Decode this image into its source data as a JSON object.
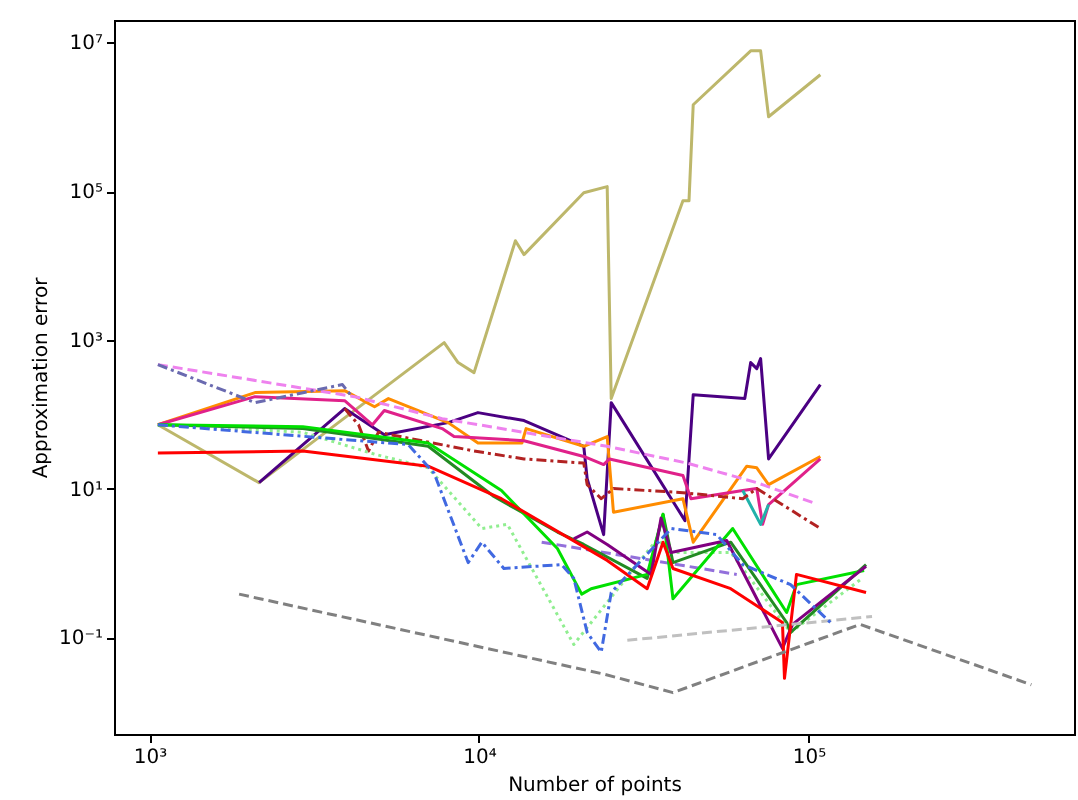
{
  "chart_data": {
    "type": "line",
    "xlabel": "Number of points",
    "ylabel": "Approximation error",
    "log": "xy",
    "grid": false,
    "marker": "none",
    "xlim": [
      780,
      640000
    ],
    "ylim": [
      0.005,
      20000000
    ],
    "xticks": [
      {
        "value": 1000,
        "label": "10³"
      },
      {
        "value": 10000,
        "label": "10⁴"
      },
      {
        "value": 100000,
        "label": "10⁵"
      }
    ],
    "yticks": [
      {
        "value": 0.1,
        "label": "10⁻¹"
      },
      {
        "value": 10,
        "label": "10¹"
      },
      {
        "value": 1000,
        "label": "10³"
      },
      {
        "value": 100000,
        "label": "10⁵"
      },
      {
        "value": 10000000,
        "label": "10⁷"
      }
    ],
    "series": [
      {
        "color": "#bdb76b",
        "line_style": "solid",
        "x": [
          1060,
          2150,
          7840,
          8640,
          9660,
          12900,
          13700,
          20800,
          24500,
          25200,
          41600,
          43400,
          44700,
          66800,
          71600,
          75700,
          108700
        ],
        "values": [
          72,
          12,
          916,
          494,
          362,
          21500,
          14000,
          95000,
          115000,
          162,
          74000,
          74000,
          1450000,
          7700000,
          7700000,
          1000000,
          3670000
        ]
      },
      {
        "color": "#4b0082",
        "line_style": "solid",
        "x": [
          2150,
          3910,
          5160,
          8060,
          9930,
          13700,
          20800,
          21300,
          23900,
          25200,
          42200,
          44700,
          64100,
          66800,
          69700,
          71600,
          75700,
          108700
        ],
        "values": [
          12,
          119,
          53,
          77,
          105,
          82,
          37,
          13.6,
          2.4,
          143,
          3.7,
          183,
          162,
          494,
          410,
          559,
          25,
          250
        ]
      },
      {
        "color": "#ff8c00",
        "line_style": "solid",
        "x": [
          1060,
          2090,
          3910,
          4820,
          5310,
          8060,
          9930,
          13500,
          13900,
          20800,
          24500,
          25600,
          41600,
          44700,
          65000,
          69700,
          75700,
          108700
        ],
        "values": [
          72,
          195,
          207,
          126,
          162,
          77,
          41,
          41,
          64,
          37,
          50,
          4.8,
          7.3,
          1.9,
          20,
          19,
          11.3,
          27
        ]
      },
      {
        "color": "#e0218a",
        "line_style": "solid",
        "x": [
          1060,
          2090,
          3910,
          4750,
          5160,
          7730,
          8400,
          13700,
          20800,
          23900,
          24900,
          41600,
          44000,
          63200,
          69700,
          72600,
          75700,
          108700
        ],
        "values": [
          72,
          172,
          152,
          72,
          112,
          64,
          50,
          44,
          27,
          21,
          25,
          15,
          7.3,
          9.4,
          10,
          3.3,
          6.1,
          25
        ]
      },
      {
        "color": "#20b2aa",
        "line_style": "solid",
        "x": [
          63200,
          71600,
          75700
        ],
        "values": [
          9.4,
          3.3,
          6.1
        ]
      },
      {
        "color": "#b22222",
        "line_style": "dashdot",
        "x": [
          3910,
          4310,
          4620,
          4950,
          9660,
          13700,
          20800,
          21300,
          23500,
          25600,
          41600,
          63200,
          69700,
          108700
        ],
        "values": [
          119,
          72,
          32,
          57,
          32,
          25,
          22,
          11.3,
          7.3,
          10,
          8.8,
          7.3,
          10,
          2.9
        ]
      },
      {
        "color": "#ee82ee",
        "line_style": "dashed",
        "x": [
          1060,
          4190,
          7730,
          24500,
          42800,
          69700,
          102800
        ],
        "values": [
          464,
          172,
          87,
          37,
          22,
          12,
          6.5
        ]
      },
      {
        "color": "#6a6ab0",
        "line_style": "dashdot",
        "x": [
          1060,
          2090,
          3850,
          4070
        ],
        "values": [
          464,
          143,
          250,
          183
        ]
      },
      {
        "color": "#90ee90",
        "line_style": "dotted",
        "x": [
          1060,
          2920,
          4820,
          7010,
          10200,
          12200,
          19400,
          34800,
          38300,
          58100,
          88300,
          145500
        ],
        "values": [
          72,
          57,
          29,
          19,
          2.9,
          3.3,
          0.08,
          2.1,
          1.38,
          1.38,
          0.116,
          0.62
        ]
      },
      {
        "color": "#9370db",
        "line_style": "dashed",
        "x": [
          15500,
          60600
        ],
        "values": [
          1.9,
          0.7
        ]
      },
      {
        "color": "#228b22",
        "line_style": "solid",
        "x": [
          1060,
          2920,
          4820,
          7010,
          11100,
          17300,
          20800,
          32400,
          36200,
          38800,
          58100,
          85900,
          88300,
          149600
        ],
        "values": [
          72,
          64,
          47,
          37,
          7.8,
          2.6,
          1.77,
          0.62,
          4.5,
          1.01,
          1.9,
          0.158,
          0.116,
          0.95
        ]
      },
      {
        "color": "#00e000",
        "line_style": "solid",
        "x": [
          1060,
          2920,
          7010,
          11700,
          17300,
          20500,
          21900,
          32400,
          36200,
          38800,
          58900,
          85900,
          92000,
          147600
        ],
        "values": [
          72,
          68,
          41,
          9.4,
          1.56,
          0.38,
          0.45,
          0.7,
          4.5,
          0.33,
          2.9,
          0.215,
          0.51,
          0.79
        ]
      },
      {
        "color": "#800080",
        "line_style": "solid",
        "x": [
          19400,
          21300,
          24500,
          33300,
          35700,
          38300,
          56500,
          83400,
          89500,
          149600
        ],
        "values": [
          2.1,
          2.6,
          1.77,
          0.7,
          4,
          1.38,
          2,
          0.071,
          0.149,
          0.9
        ]
      },
      {
        "color": "#ff0000",
        "line_style": "solid",
        "x": [
          1060,
          2920,
          7010,
          11700,
          24500,
          32400,
          36200,
          38800,
          58100,
          83400,
          84600,
          92000,
          149600
        ],
        "values": [
          30,
          32,
          20,
          7.3,
          1.08,
          0.45,
          1.9,
          0.84,
          0.45,
          0.158,
          0.028,
          0.7,
          0.4
        ]
      },
      {
        "color": "#808080",
        "line_style": "dashed",
        "x": [
          1870,
          23900,
          38800,
          143500,
          475000
        ],
        "values": [
          0.38,
          0.032,
          0.018,
          0.149,
          0.023
        ]
      },
      {
        "color": "#c0c0c0",
        "line_style": "dashed",
        "x": [
          28200,
          156000
        ],
        "values": [
          0.091,
          0.19
        ]
      },
      {
        "color": "#4169e1",
        "line_style": "dashdot",
        "x": [
          1060,
          6100,
          7310,
          9270,
          10200,
          11900,
          17800,
          19400,
          21300,
          23500,
          25200,
          38300,
          52700,
          63200,
          88300,
          118300
        ],
        "values": [
          72,
          39,
          16,
          1.01,
          1.9,
          0.84,
          0.95,
          0.62,
          0.116,
          0.063,
          0.4,
          2.9,
          2.4,
          0.95,
          0.51,
          0.149
        ]
      }
    ]
  }
}
